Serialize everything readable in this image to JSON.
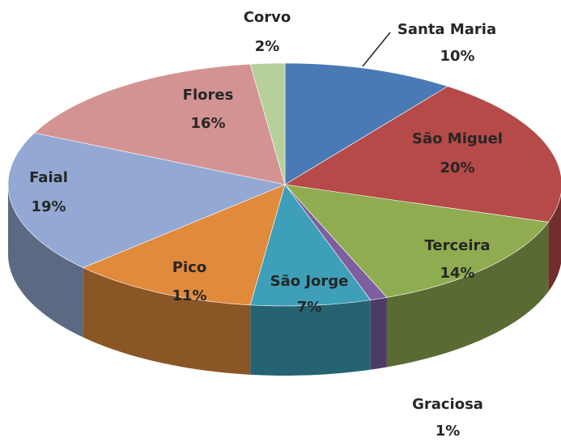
{
  "chart_data": {
    "type": "pie3d",
    "categories": [
      "Santa Maria",
      "São Miguel",
      "Terceira",
      "Graciosa",
      "São Jorge",
      "Pico",
      "Faial",
      "Flores",
      "Corvo"
    ],
    "values": [
      10,
      20,
      14,
      1,
      7,
      11,
      19,
      16,
      2
    ],
    "value_labels": [
      "10%",
      "20%",
      "14%",
      "1%",
      "7%",
      "11%",
      "19%",
      "16%",
      "2%"
    ],
    "colors": [
      "#4a7ab5",
      "#b54a48",
      "#8fad50",
      "#7d5fa0",
      "#3e9fb8",
      "#e08a3c",
      "#93a9d4",
      "#d49393",
      "#b7d09a"
    ]
  }
}
